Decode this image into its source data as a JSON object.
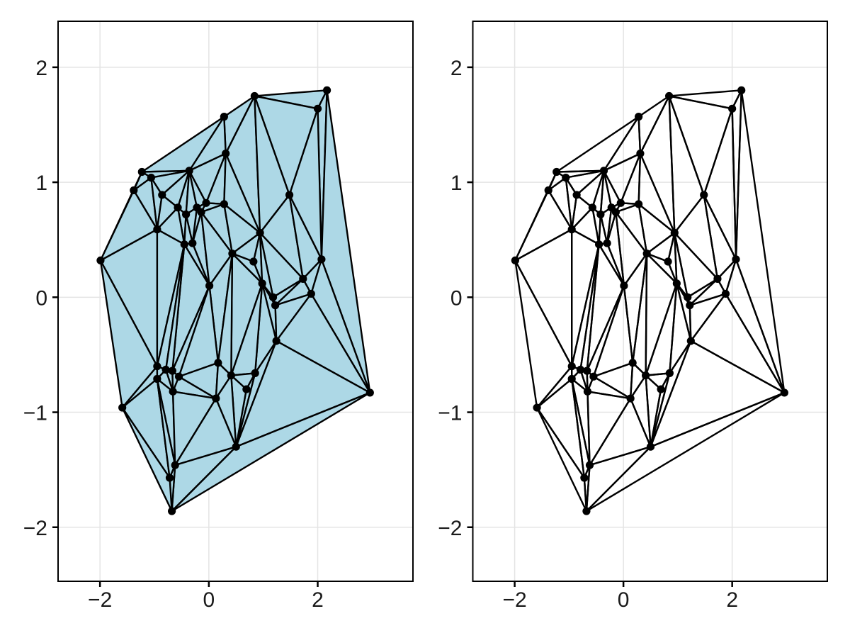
{
  "figure": {
    "background": "#ffffff",
    "description": "Two-panel plot of the same planar point set: left panel shows the triangulation with filled faces, right panel shows the same triangulation as a wireframe"
  },
  "chart_data": {
    "type": "scatter",
    "subtype": "delaunay-triangulation-mesh",
    "title": "",
    "xlabel": "",
    "ylabel": "",
    "grid": true,
    "xlim": [
      -2.77,
      3.75
    ],
    "ylim": [
      -2.47,
      2.4
    ],
    "x_ticks": {
      "values": [
        -2,
        0,
        2
      ],
      "labels": [
        "−2",
        "0",
        "2"
      ]
    },
    "y_ticks": {
      "values": [
        -2,
        -1,
        0,
        1,
        2
      ],
      "labels": [
        "−2",
        "−1",
        "0",
        "1",
        "2"
      ]
    },
    "panels": [
      {
        "name": "filled-triangulation",
        "face_fill": "#ADD8E6"
      },
      {
        "name": "wireframe-triangulation",
        "face_fill": "none"
      }
    ],
    "points": [
      [
        0.84,
        1.75
      ],
      [
        2.17,
        1.8
      ],
      [
        2.0,
        1.64
      ],
      [
        0.28,
        1.57
      ],
      [
        0.31,
        1.25
      ],
      [
        -1.23,
        1.09
      ],
      [
        -1.06,
        1.04
      ],
      [
        -0.36,
        1.1
      ],
      [
        -1.38,
        0.93
      ],
      [
        -0.86,
        0.89
      ],
      [
        -0.57,
        0.78
      ],
      [
        -0.22,
        0.78
      ],
      [
        -0.14,
        0.74
      ],
      [
        -0.05,
        0.82
      ],
      [
        0.28,
        0.81
      ],
      [
        -0.42,
        0.72
      ],
      [
        1.48,
        0.89
      ],
      [
        -0.95,
        0.59
      ],
      [
        0.94,
        0.56
      ],
      [
        -0.45,
        0.46
      ],
      [
        -0.3,
        0.47
      ],
      [
        -1.99,
        0.32
      ],
      [
        0.43,
        0.38
      ],
      [
        0.82,
        0.31
      ],
      [
        2.07,
        0.33
      ],
      [
        1.73,
        0.16
      ],
      [
        0.01,
        0.1
      ],
      [
        0.98,
        0.12
      ],
      [
        1.88,
        0.03
      ],
      [
        1.18,
        0.0
      ],
      [
        1.22,
        -0.07
      ],
      [
        1.24,
        -0.38
      ],
      [
        -0.95,
        -0.6
      ],
      [
        -0.79,
        -0.63
      ],
      [
        -0.67,
        -0.64
      ],
      [
        -0.95,
        -0.71
      ],
      [
        -0.55,
        -0.69
      ],
      [
        -0.66,
        -0.82
      ],
      [
        0.17,
        -0.57
      ],
      [
        0.41,
        -0.68
      ],
      [
        0.85,
        -0.66
      ],
      [
        0.69,
        -0.8
      ],
      [
        0.13,
        -0.88
      ],
      [
        -1.59,
        -0.96
      ],
      [
        0.5,
        -1.3
      ],
      [
        -0.62,
        -1.46
      ],
      [
        -0.72,
        -1.57
      ],
      [
        -0.68,
        -1.86
      ],
      [
        2.96,
        -0.83
      ]
    ],
    "styles": {
      "edge_color": "#000000",
      "marker_color": "#000000",
      "frame_color": "#000000",
      "grid_color": "#e4e4e4",
      "tick_color": "#000000",
      "label_color": "#1a1a1a"
    }
  }
}
